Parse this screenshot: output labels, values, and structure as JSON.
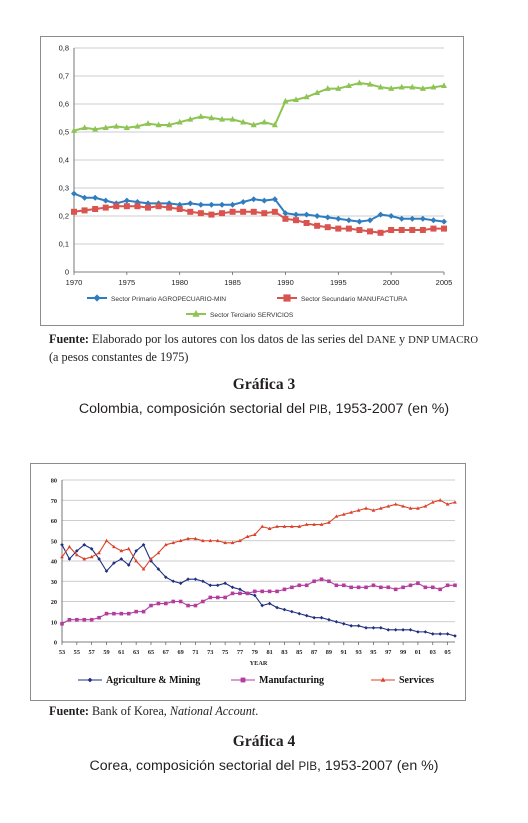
{
  "chart_data": [
    {
      "type": "line",
      "x": [
        1970,
        1971,
        1972,
        1973,
        1974,
        1975,
        1976,
        1977,
        1978,
        1979,
        1980,
        1981,
        1982,
        1983,
        1984,
        1985,
        1986,
        1987,
        1988,
        1989,
        1990,
        1991,
        1992,
        1993,
        1994,
        1995,
        1996,
        1997,
        1998,
        1999,
        2000,
        2001,
        2002,
        2003,
        2004,
        2005
      ],
      "xticks": [
        "1970",
        "1975",
        "1980",
        "1985",
        "1990",
        "1995",
        "2000",
        "2005"
      ],
      "yticks": [
        "0",
        "0,1",
        "0,2",
        "0,3",
        "0,4",
        "0,5",
        "0,6",
        "0,7",
        "0,8"
      ],
      "ylim": [
        0,
        0.8
      ],
      "xlim": [
        1970,
        2005
      ],
      "grid": true,
      "legend": "bottom",
      "series": [
        {
          "name": "Sector Primario AGROPECUARIO-MIN",
          "color": "#2f7dc0",
          "marker": "diamond",
          "values": [
            0.28,
            0.265,
            0.265,
            0.255,
            0.245,
            0.255,
            0.25,
            0.245,
            0.245,
            0.245,
            0.24,
            0.245,
            0.24,
            0.24,
            0.24,
            0.24,
            0.25,
            0.26,
            0.255,
            0.26,
            0.21,
            0.205,
            0.205,
            0.2,
            0.195,
            0.19,
            0.185,
            0.18,
            0.185,
            0.205,
            0.2,
            0.19,
            0.19,
            0.19,
            0.185,
            0.18
          ]
        },
        {
          "name": "Sector Secundario MANUFACTURA",
          "color": "#d9534f",
          "marker": "square",
          "values": [
            0.215,
            0.22,
            0.225,
            0.23,
            0.235,
            0.235,
            0.235,
            0.23,
            0.235,
            0.23,
            0.225,
            0.215,
            0.21,
            0.205,
            0.21,
            0.215,
            0.215,
            0.215,
            0.21,
            0.215,
            0.19,
            0.185,
            0.175,
            0.165,
            0.16,
            0.155,
            0.155,
            0.15,
            0.145,
            0.14,
            0.15,
            0.15,
            0.15,
            0.15,
            0.155,
            0.155
          ]
        },
        {
          "name": "Sector Terciario SERVICIOS",
          "color": "#8dc454",
          "marker": "triangle",
          "values": [
            0.505,
            0.515,
            0.51,
            0.515,
            0.52,
            0.515,
            0.52,
            0.53,
            0.525,
            0.525,
            0.535,
            0.545,
            0.555,
            0.55,
            0.545,
            0.545,
            0.535,
            0.525,
            0.535,
            0.525,
            0.61,
            0.615,
            0.625,
            0.64,
            0.655,
            0.655,
            0.665,
            0.675,
            0.67,
            0.66,
            0.655,
            0.66,
            0.66,
            0.655,
            0.66,
            0.665
          ]
        }
      ]
    },
    {
      "type": "line",
      "x": [
        1953,
        1954,
        1955,
        1956,
        1957,
        1958,
        1959,
        1960,
        1961,
        1962,
        1963,
        1964,
        1965,
        1966,
        1967,
        1968,
        1969,
        1970,
        1971,
        1972,
        1973,
        1974,
        1975,
        1976,
        1977,
        1978,
        1979,
        1980,
        1981,
        1982,
        1983,
        1984,
        1985,
        1986,
        1987,
        1988,
        1989,
        1990,
        1991,
        1992,
        1993,
        1994,
        1995,
        1996,
        1997,
        1998,
        1999,
        2000,
        2001,
        2002,
        2003,
        2004,
        2005,
        2006
      ],
      "xticks": [
        "53",
        "55",
        "57",
        "59",
        "61",
        "63",
        "65",
        "67",
        "69",
        "71",
        "73",
        "75",
        "77",
        "79",
        "81",
        "83",
        "85",
        "87",
        "89",
        "91",
        "93",
        "95",
        "97",
        "99",
        "01",
        "03",
        "05"
      ],
      "yticks": [
        "0",
        "10",
        "20",
        "30",
        "40",
        "50",
        "60",
        "70",
        "80"
      ],
      "xlabel": "YEAR",
      "ylim": [
        0,
        80
      ],
      "xlim": [
        1953,
        2006
      ],
      "grid": true,
      "legend": "bottom",
      "series": [
        {
          "name": "Agriculture & Mining",
          "color": "#1f2f82",
          "marker": "diamond",
          "values": [
            48,
            41,
            45,
            48,
            46,
            41,
            35,
            39,
            41,
            38,
            45,
            48,
            40,
            36,
            32,
            30,
            29,
            31,
            31,
            30,
            28,
            28,
            29,
            27,
            26,
            24,
            23,
            18,
            19,
            17,
            16,
            15,
            14,
            13,
            12,
            12,
            11,
            10,
            9,
            8,
            8,
            7,
            7,
            7,
            6,
            6,
            6,
            6,
            5,
            5,
            4,
            4,
            4,
            3
          ]
        },
        {
          "name": "Manufacturing",
          "color": "#b33c9e",
          "marker": "square",
          "values": [
            9,
            11,
            11,
            11,
            11,
            12,
            14,
            14,
            14,
            14,
            15,
            15,
            18,
            19,
            19,
            20,
            20,
            18,
            18,
            20,
            22,
            22,
            22,
            24,
            24,
            24,
            25,
            25,
            25,
            25,
            26,
            27,
            28,
            28,
            30,
            31,
            30,
            28,
            28,
            27,
            27,
            27,
            28,
            27,
            27,
            26,
            27,
            28,
            29,
            27,
            27,
            26,
            28,
            28
          ]
        },
        {
          "name": "Services",
          "color": "#d9432b",
          "marker": "triangle",
          "values": [
            42,
            47,
            43,
            41,
            42,
            44,
            50,
            47,
            45,
            46,
            40,
            36,
            41,
            44,
            48,
            49,
            50,
            51,
            51,
            50,
            50,
            50,
            49,
            49,
            50,
            52,
            53,
            57,
            56,
            57,
            57,
            57,
            57,
            58,
            58,
            58,
            59,
            62,
            63,
            64,
            65,
            66,
            65,
            66,
            67,
            68,
            67,
            66,
            66,
            67,
            69,
            70,
            68,
            69
          ]
        }
      ]
    }
  ],
  "chart1": {
    "source_label": "Fuente:",
    "source_text_a": "Elaborado por los autores con los datos de las series del",
    "source_dane": "DANE",
    "source_y": "y",
    "source_dnp": "DNP UMACRO",
    "source_text_b": "(a pesos constantes de 1975)",
    "figure_title": "Gráfica 3",
    "figure_sub_a": "Colombia, composición sectorial del",
    "figure_sub_pib": "PIB",
    "figure_sub_b": ", 1953-2007 (en %)"
  },
  "chart2": {
    "source_label": "Fuente:",
    "source_text_a": "Bank of Korea,",
    "source_text_b": "National Account",
    "source_dot": ".",
    "figure_title": "Gráfica 4",
    "figure_sub_a": "Corea, composición sectorial del",
    "figure_sub_pib": "PIB",
    "figure_sub_b": ", 1953-2007 (en %)"
  }
}
